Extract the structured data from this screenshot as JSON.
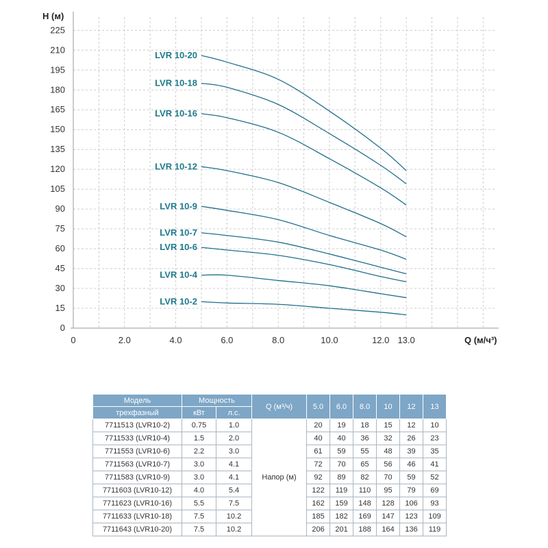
{
  "chart_data": {
    "type": "line",
    "y_axis_title": "H (м)",
    "x_axis_title": "Q (м/ч³)",
    "yticks": [
      0,
      15,
      30,
      45,
      60,
      75,
      90,
      105,
      120,
      135,
      150,
      165,
      180,
      195,
      210,
      225
    ],
    "xticks": [
      0,
      2.0,
      4.0,
      6.0,
      8.0,
      10.0,
      12.0,
      13.0
    ],
    "xtick_labels": [
      "0",
      "2.0",
      "4.0",
      "6.0",
      "8.0",
      "10.0",
      "12.0",
      "13.0"
    ],
    "xlim": [
      0,
      16.5
    ],
    "ylim": [
      0,
      235
    ],
    "grid": true,
    "line_color": "#1f6f8b",
    "label_color": "#1f7a8c",
    "x": [
      5.0,
      6.0,
      8.0,
      10.0,
      12.0,
      13.0
    ],
    "series": [
      {
        "name": "LVR 10-20",
        "values": [
          206,
          201,
          188,
          164,
          136,
          119
        ]
      },
      {
        "name": "LVR 10-18",
        "values": [
          185,
          182,
          169,
          147,
          123,
          109
        ]
      },
      {
        "name": "LVR 10-16",
        "values": [
          162,
          159,
          148,
          128,
          106,
          93
        ]
      },
      {
        "name": "LVR 10-12",
        "values": [
          122,
          119,
          110,
          95,
          79,
          69
        ]
      },
      {
        "name": "LVR 10-9",
        "values": [
          92,
          89,
          82,
          70,
          59,
          52
        ]
      },
      {
        "name": "LVR 10-7",
        "values": [
          72,
          70,
          65,
          56,
          46,
          41
        ]
      },
      {
        "name": "LVR 10-6",
        "values": [
          61,
          59,
          55,
          48,
          39,
          35
        ]
      },
      {
        "name": "LVR 10-4",
        "values": [
          40,
          40,
          36,
          32,
          26,
          23
        ]
      },
      {
        "name": "LVR 10-2",
        "values": [
          20,
          19,
          18,
          15,
          12,
          10
        ]
      }
    ]
  },
  "table": {
    "header": {
      "model_top": "Модель",
      "model_bottom": "трехфазный",
      "power": "Мощность",
      "kw": "кВт",
      "hp": "л.с.",
      "q": "Q (м³/ч)",
      "flows": [
        "5.0",
        "6.0",
        "8.0",
        "10",
        "12",
        "13"
      ]
    },
    "napor_label": "Напор (м)",
    "rows": [
      {
        "model": "7711513 (LVR10-2)",
        "kw": "0.75",
        "hp": "1.0",
        "values": [
          "20",
          "19",
          "18",
          "15",
          "12",
          "10"
        ]
      },
      {
        "model": "7711533 (LVR10-4)",
        "kw": "1.5",
        "hp": "2.0",
        "values": [
          "40",
          "40",
          "36",
          "32",
          "26",
          "23"
        ]
      },
      {
        "model": "7711553 (LVR10-6)",
        "kw": "2.2",
        "hp": "3.0",
        "values": [
          "61",
          "59",
          "55",
          "48",
          "39",
          "35"
        ]
      },
      {
        "model": "7711563 (LVR10-7)",
        "kw": "3.0",
        "hp": "4.1",
        "values": [
          "72",
          "70",
          "65",
          "56",
          "46",
          "41"
        ]
      },
      {
        "model": "7711583 (LVR10-9)",
        "kw": "3.0",
        "hp": "4.1",
        "values": [
          "92",
          "89",
          "82",
          "70",
          "59",
          "52"
        ]
      },
      {
        "model": "7711603 (LVR10-12)",
        "kw": "4.0",
        "hp": "5.4",
        "values": [
          "122",
          "119",
          "110",
          "95",
          "79",
          "69"
        ]
      },
      {
        "model": "7711623 (LVR10-16)",
        "kw": "5.5",
        "hp": "7.5",
        "values": [
          "162",
          "159",
          "148",
          "128",
          "106",
          "93"
        ]
      },
      {
        "model": "7711633 (LVR10-18)",
        "kw": "7.5",
        "hp": "10.2",
        "values": [
          "185",
          "182",
          "169",
          "147",
          "123",
          "109"
        ]
      },
      {
        "model": "7711643 (LVR10-20)",
        "kw": "7.5",
        "hp": "10.2",
        "values": [
          "206",
          "201",
          "188",
          "164",
          "136",
          "119"
        ]
      }
    ]
  }
}
